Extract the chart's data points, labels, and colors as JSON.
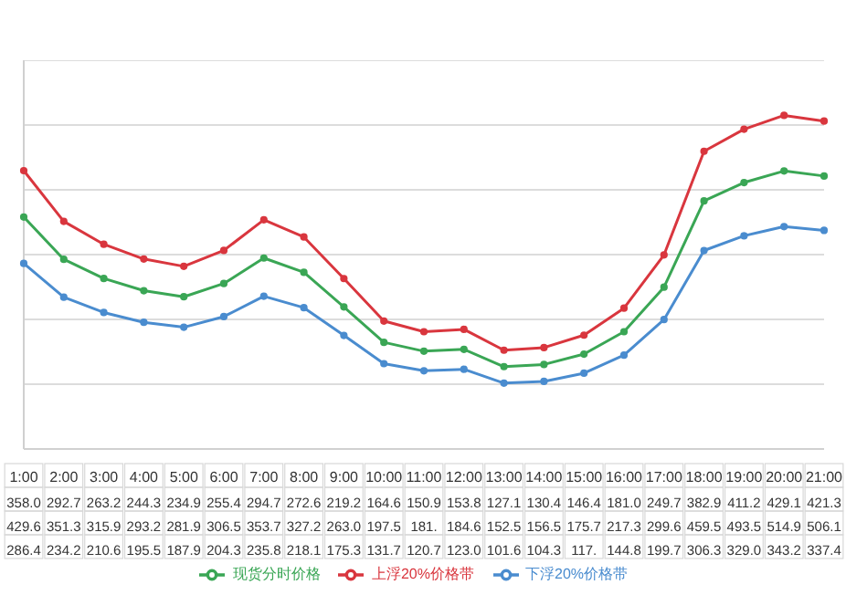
{
  "chart_data": {
    "type": "line",
    "categories": [
      "1:00",
      "2:00",
      "3:00",
      "4:00",
      "5:00",
      "6:00",
      "7:00",
      "8:00",
      "9:00",
      "10:00",
      "11:00",
      "12:00",
      "13:00",
      "14:00",
      "15:00",
      "16:00",
      "17:00",
      "18:00",
      "19:00",
      "20:00",
      "21:00"
    ],
    "series": [
      {
        "name": "现货分时价格",
        "color": "#3aa655",
        "values": [
          358.0,
          292.7,
          263.2,
          244.3,
          234.9,
          255.4,
          294.7,
          272.6,
          219.2,
          164.6,
          150.9,
          153.8,
          127.1,
          130.4,
          146.4,
          181.0,
          249.7,
          382.9,
          411.2,
          429.1,
          421.3
        ],
        "value_labels": [
          "358.0",
          "292.7",
          "263.2",
          "244.3",
          "234.9",
          "255.4",
          "294.7",
          "272.6",
          "219.2",
          "164.6",
          "150.9",
          "153.8",
          "127.1",
          "130.4",
          "146.4",
          "181.0",
          "249.7",
          "382.9",
          "411.2",
          "429.1",
          "421.3"
        ]
      },
      {
        "name": "上浮20%价格带",
        "color": "#d9363e",
        "values": [
          429.6,
          351.3,
          315.9,
          293.2,
          281.9,
          306.5,
          353.7,
          327.2,
          263.0,
          197.5,
          181,
          184.6,
          152.5,
          156.5,
          175.7,
          217.3,
          299.6,
          459.5,
          493.5,
          514.9,
          506.1
        ],
        "value_labels": [
          "429.6",
          "351.3",
          "315.9",
          "293.2",
          "281.9",
          "306.5",
          "353.7",
          "327.2",
          "263.0",
          "197.5",
          "181.",
          "184.6",
          "152.5",
          "156.5",
          "175.7",
          "217.3",
          "299.6",
          "459.5",
          "493.5",
          "514.9",
          "506.1"
        ]
      },
      {
        "name": "下浮20%价格带",
        "color": "#4a8ccf",
        "values": [
          286.4,
          234.2,
          210.6,
          195.5,
          187.9,
          204.3,
          235.8,
          218.1,
          175.3,
          131.7,
          120.7,
          123.0,
          101.6,
          104.3,
          117,
          144.8,
          199.7,
          306.3,
          329.0,
          343.2,
          337.4
        ],
        "value_labels": [
          "286.4",
          "234.2",
          "210.6",
          "195.5",
          "187.9",
          "204.3",
          "235.8",
          "218.1",
          "175.3",
          "131.7",
          "120.7",
          "123.0",
          "101.6",
          "104.3",
          "117.",
          "144.8",
          "199.7",
          "306.3",
          "329.0",
          "343.2",
          "337.4"
        ]
      }
    ],
    "ylim": [
      0,
      600
    ],
    "yticks": [
      {
        "value": 0,
        "label": null
      },
      {
        "value": 100,
        "label": null
      },
      {
        "value": 200,
        "label": null
      },
      {
        "value": 300,
        "label": null
      },
      {
        "value": 400,
        "label": null
      },
      {
        "value": 500,
        "label": null
      },
      {
        "value": 600,
        "label": null
      }
    ],
    "tick_labels": "x",
    "grid": "y",
    "legend": "bottom",
    "marker": "circle",
    "line_style": "solid"
  }
}
